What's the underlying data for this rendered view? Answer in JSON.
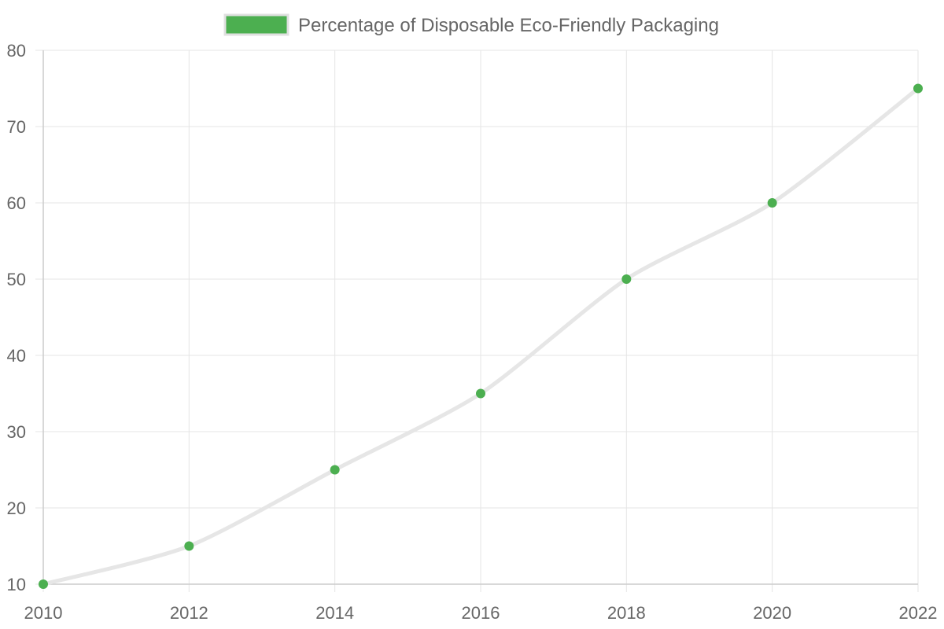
{
  "chart_data": {
    "type": "line",
    "x": [
      2010,
      2012,
      2014,
      2016,
      2018,
      2020,
      2022
    ],
    "series": [
      {
        "name": "Percentage of Disposable Eco-Friendly Packaging",
        "values": [
          10,
          15,
          25,
          35,
          50,
          60,
          75
        ]
      }
    ],
    "xlim": [
      2010,
      2022
    ],
    "ylim": [
      10,
      80
    ],
    "x_ticks": [
      "2010",
      "2012",
      "2014",
      "2016",
      "2018",
      "2020",
      "2022"
    ],
    "y_ticks": [
      "10",
      "20",
      "30",
      "40",
      "50",
      "60",
      "70",
      "80"
    ],
    "title": "",
    "xlabel": "",
    "ylabel": "",
    "grid": true,
    "legend_position": "top-center",
    "colors": {
      "line": "#e6e6e6",
      "points": "#4caf50",
      "legend_fill": "#4caf50",
      "legend_border": "#e0e0e0",
      "grid": "#e5e5e5",
      "text": "#666666"
    }
  }
}
